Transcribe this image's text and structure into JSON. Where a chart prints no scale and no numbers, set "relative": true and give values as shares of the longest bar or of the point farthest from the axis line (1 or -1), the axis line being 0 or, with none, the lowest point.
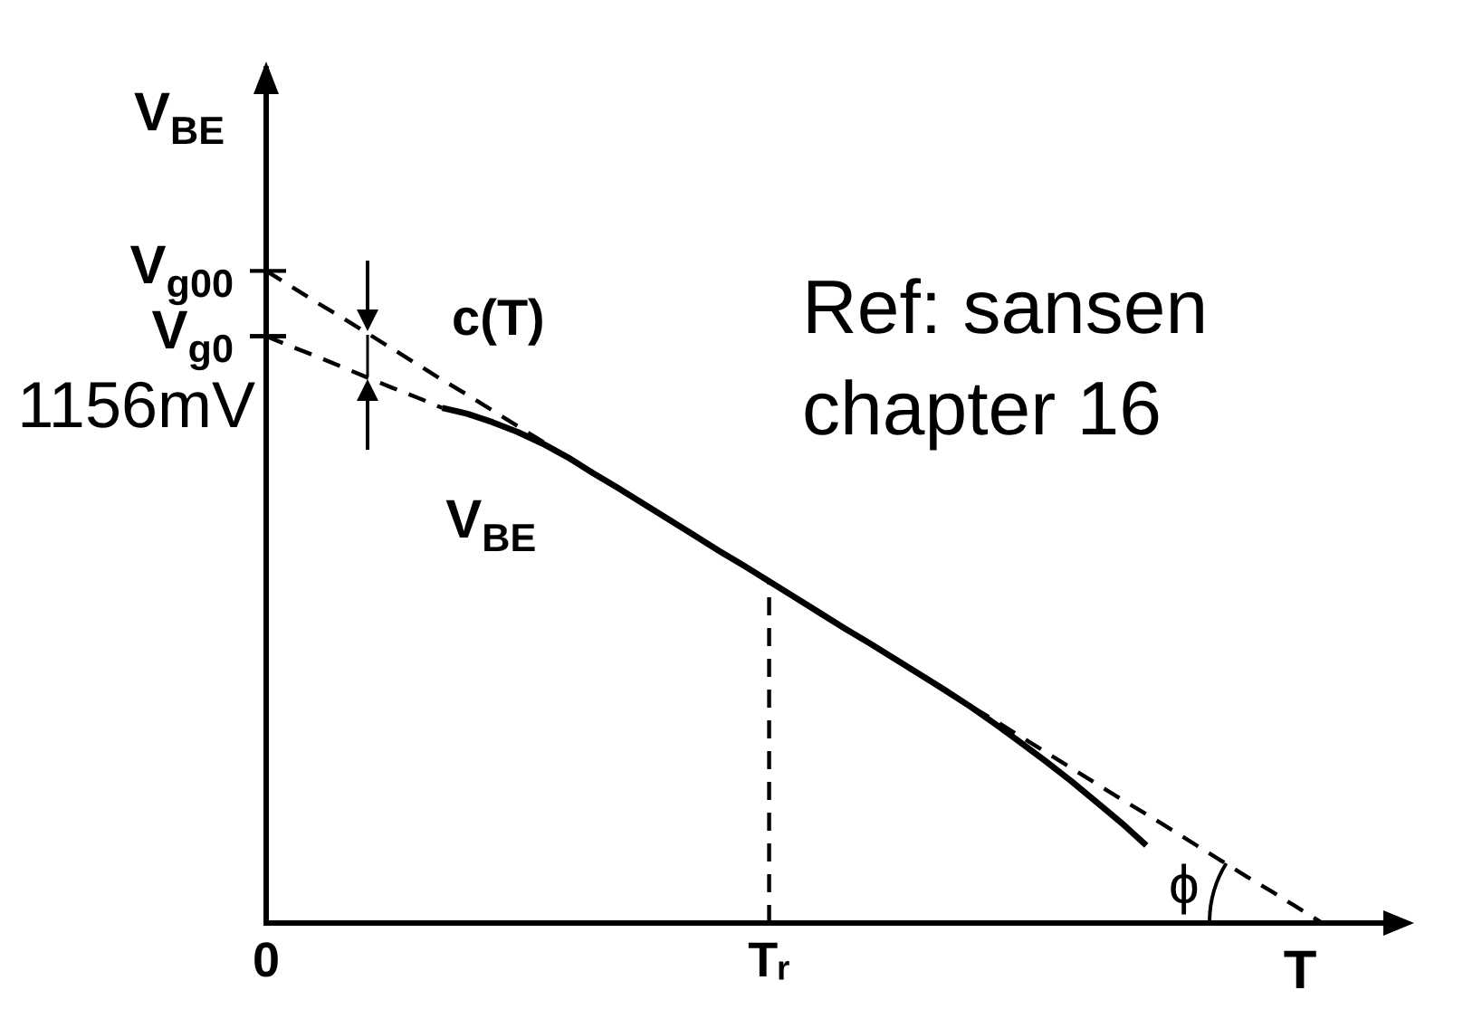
{
  "chart_data": {
    "type": "line",
    "ylabel": "V$_{BE}$",
    "xlabel": "T",
    "categories": [
      "0",
      null,
      null,
      null,
      null,
      null,
      null,
      null,
      null,
      null,
      null,
      null,
      null,
      null,
      null,
      null,
      null,
      null,
      null,
      null,
      "Tᵣ",
      null,
      null,
      null,
      null,
      null,
      null,
      null,
      null,
      null,
      null,
      null,
      null,
      null,
      null,
      null,
      null,
      null,
      null,
      null,
      null,
      null,
      null,
      null,
      null,
      null
    ],
    "relative": true,
    "series": [
      {
        "name": "V$_{BE}$",
        "color": "#000000",
        "line_style": "solid",
        "values": [
          null,
          null,
          null,
          null,
          null,
          null,
          null,
          0.79,
          0.781,
          0.768,
          0.753,
          0.735,
          0.714,
          0.69,
          0.667,
          0.643,
          0.619,
          0.595,
          0.571,
          0.548,
          0.524,
          0.5,
          0.476,
          0.452,
          0.429,
          0.405,
          0.381,
          0.357,
          0.332,
          0.305,
          0.277,
          0.248,
          0.218,
          0.186,
          0.154,
          0.119,
          null,
          null,
          null,
          null,
          null,
          null,
          null,
          null,
          null,
          null
        ]
      },
      {
        "color": "#000000",
        "line_style": "dashed",
        "values": [
          1,
          0.976,
          0.952,
          0.929,
          0.905,
          0.881,
          0.857,
          0.833,
          0.81,
          0.786,
          0.762,
          0.738,
          0.714,
          0.69,
          0.667,
          0.643,
          0.619,
          0.595,
          0.571,
          0.548,
          0.524,
          0.5,
          0.476,
          0.452,
          0.429,
          0.405,
          0.381,
          0.357,
          0.333,
          0.31,
          0.286,
          0.262,
          0.238,
          0.214,
          0.19,
          0.167,
          0.143,
          0.119,
          0.095,
          0.071,
          0.048,
          0.024,
          0,
          null,
          null,
          null
        ]
      },
      {
        "color": "#000000",
        "line_style": "dashed",
        "values": [
          0.9,
          0.884,
          0.869,
          0.853,
          0.837,
          0.821,
          0.806,
          0.79,
          null,
          null,
          null,
          null,
          null,
          null,
          null,
          null,
          null,
          null,
          null,
          null,
          null,
          null,
          null,
          null,
          null,
          null,
          null,
          null,
          null,
          null,
          null,
          null,
          null,
          null,
          null,
          null,
          null,
          null,
          null,
          null,
          null,
          null,
          null,
          null,
          null,
          null
        ]
      }
    ],
    "ref_lines": [
      {
        "axis": "x",
        "value": "Tᵣ",
        "line_style": "dashed"
      }
    ],
    "annotations": [
      {
        "text": "V$_{g00}$",
        "x": "0",
        "y": 1
      },
      {
        "text": "V$_{g0}$",
        "x": "0",
        "y": 0.9
      },
      {
        "text": "1156mV",
        "x": "0",
        "y": 0.9
      },
      "c(T)",
      "ϕ",
      "Ref: sansen chapter 16"
    ],
    "legend": false,
    "grid": false,
    "marker": "none"
  }
}
